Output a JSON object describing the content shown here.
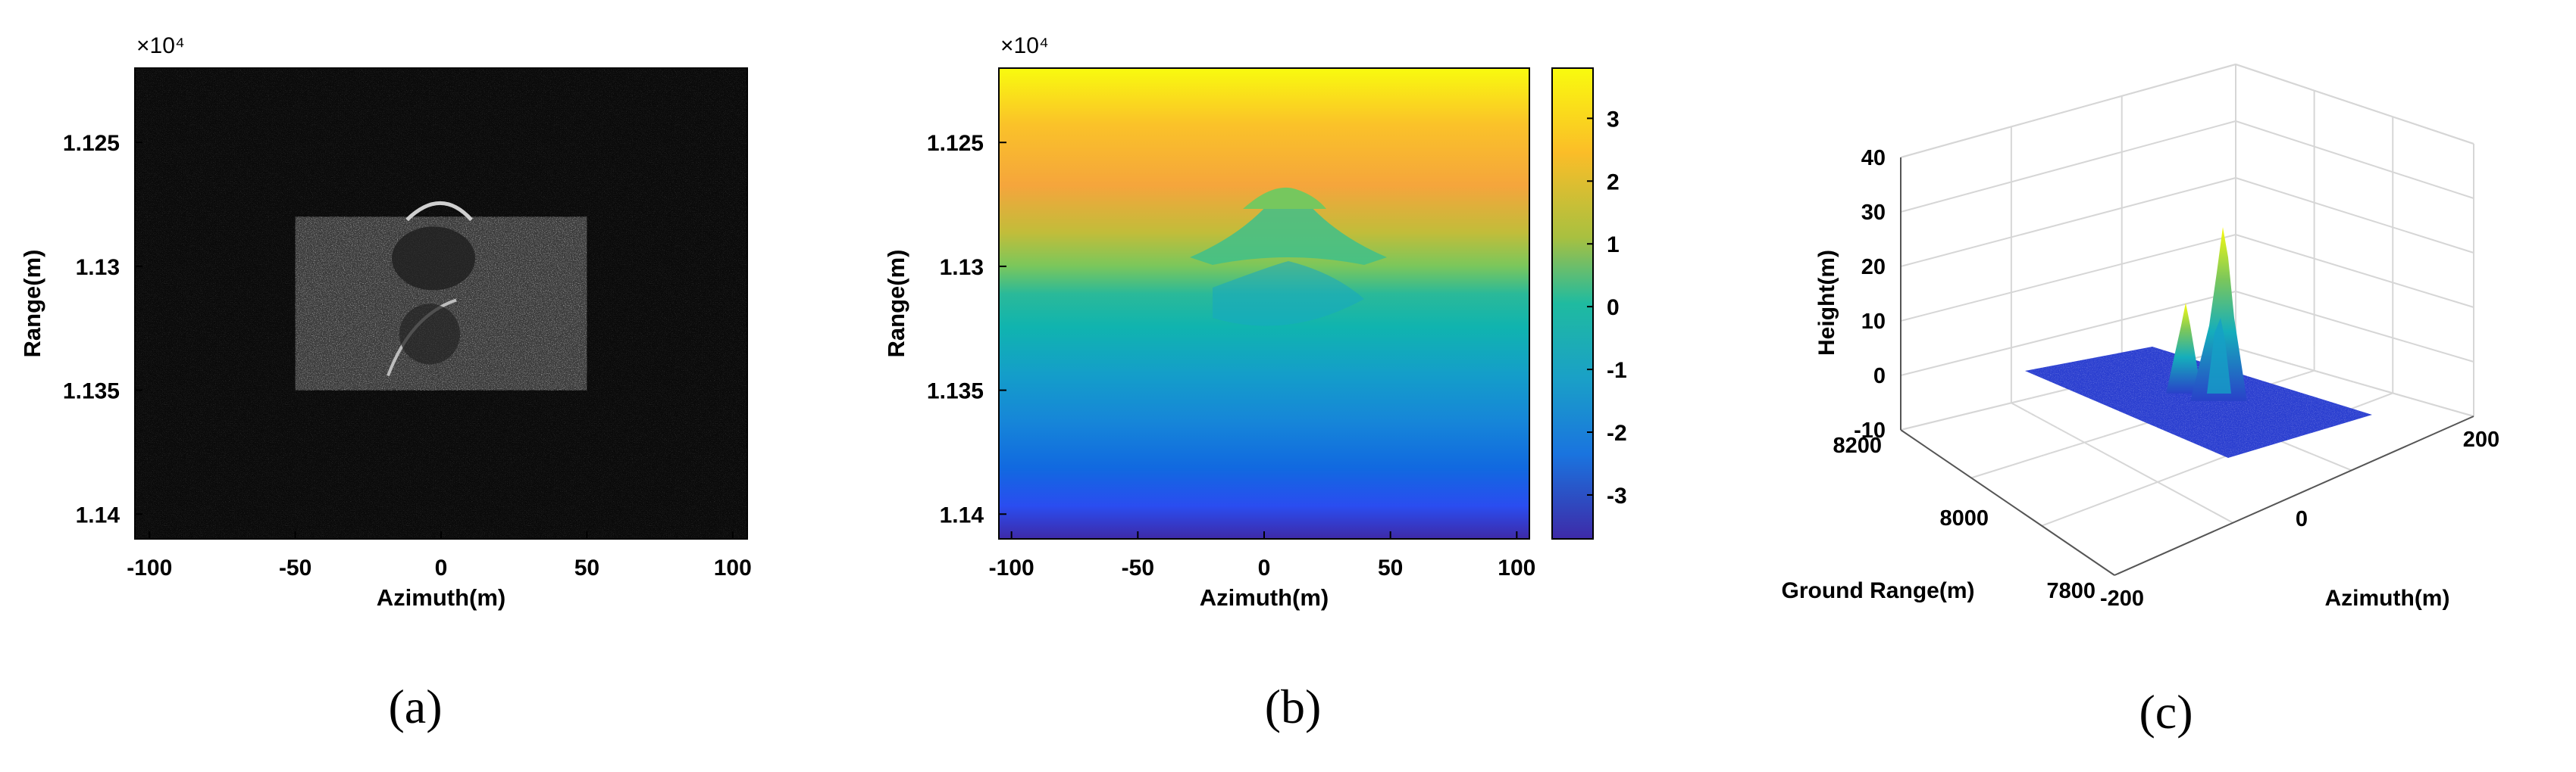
{
  "figure": {
    "captions": [
      "(a)",
      "(b)",
      "(c)"
    ]
  },
  "chart_data": [
    {
      "id": "a",
      "type": "heatmap",
      "title": "",
      "xlabel": "Azimuth(m)",
      "ylabel": "Range(m)",
      "y_exponent_label": "×10⁴",
      "xlim": [
        -105,
        105
      ],
      "ylim": [
        11.22,
        11.41
      ],
      "y_reversed": true,
      "xticks": [
        -100,
        -50,
        0,
        50,
        100
      ],
      "xtick_labels": [
        "-100",
        "-50",
        "0",
        "50",
        "100"
      ],
      "yticks": [
        11.25,
        11.3,
        11.35,
        11.4
      ],
      "ytick_labels": [
        "1.125",
        "1.13",
        "1.135",
        "1.14"
      ],
      "colormap": "gray",
      "background_color": "#0a0a0a",
      "scene_region": {
        "x": [
          -50,
          50
        ],
        "y": [
          11.28,
          11.35
        ]
      },
      "grid": false
    },
    {
      "id": "b",
      "type": "heatmap",
      "title": "",
      "xlabel": "Azimuth(m)",
      "ylabel": "Range(m)",
      "y_exponent_label": "×10⁴",
      "xlim": [
        -105,
        105
      ],
      "ylim": [
        11.22,
        11.41
      ],
      "y_reversed": true,
      "xticks": [
        -100,
        -50,
        0,
        50,
        100
      ],
      "xtick_labels": [
        "-100",
        "-50",
        "0",
        "50",
        "100"
      ],
      "yticks": [
        11.25,
        11.3,
        11.35,
        11.4
      ],
      "ytick_labels": [
        "1.125",
        "1.13",
        "1.135",
        "1.14"
      ],
      "colormap": "parula",
      "colorbar": {
        "range": [
          -3.7,
          3.8
        ],
        "ticks": [
          3,
          2,
          1,
          0,
          -1,
          -2,
          -3
        ],
        "tick_labels": [
          "3",
          "2",
          "1",
          "0",
          "-1",
          "-2",
          "-3"
        ]
      },
      "grid": false
    },
    {
      "id": "c",
      "type": "surface3d",
      "title": "",
      "xlabel": "Azimuth(m)",
      "ylabel": "Ground Range(m)",
      "zlabel": "Height(m)",
      "xlim": [
        -200,
        200
      ],
      "xticks": [
        -200,
        0,
        200
      ],
      "xtick_labels": [
        "-200",
        "0",
        "200"
      ],
      "ylim": [
        7800,
        8200
      ],
      "yticks": [
        7800,
        8000,
        8200
      ],
      "ytick_labels": [
        "7800",
        "8000",
        "8200"
      ],
      "zlim": [
        -10,
        40
      ],
      "zticks": [
        -10,
        0,
        10,
        20,
        30,
        40
      ],
      "ztick_labels": [
        "-10",
        "0",
        "10",
        "20",
        "30",
        "40"
      ],
      "colormap": "parula",
      "max_height": 27,
      "grid": true
    }
  ]
}
